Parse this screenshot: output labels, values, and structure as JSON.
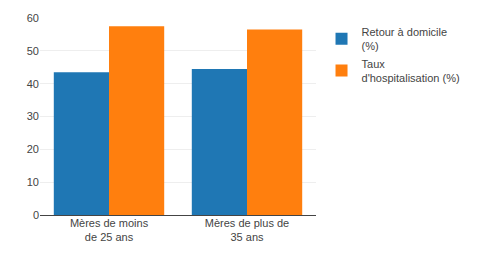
{
  "chart_data": {
    "type": "bar",
    "categories": [
      "Mères de moins\nde 25 ans",
      "Mères de plus de\n35 ans"
    ],
    "series": [
      {
        "name": "Retour à domicile\n(%)",
        "values": [
          43.5,
          44.5
        ]
      },
      {
        "name": "Taux\nd'hospitalisation (%)",
        "values": [
          57.5,
          56.5
        ]
      }
    ],
    "ylim": [
      0,
      60
    ],
    "yticks": [
      0,
      10,
      20,
      30,
      40,
      50,
      60
    ],
    "grid": true,
    "legend": "right"
  }
}
